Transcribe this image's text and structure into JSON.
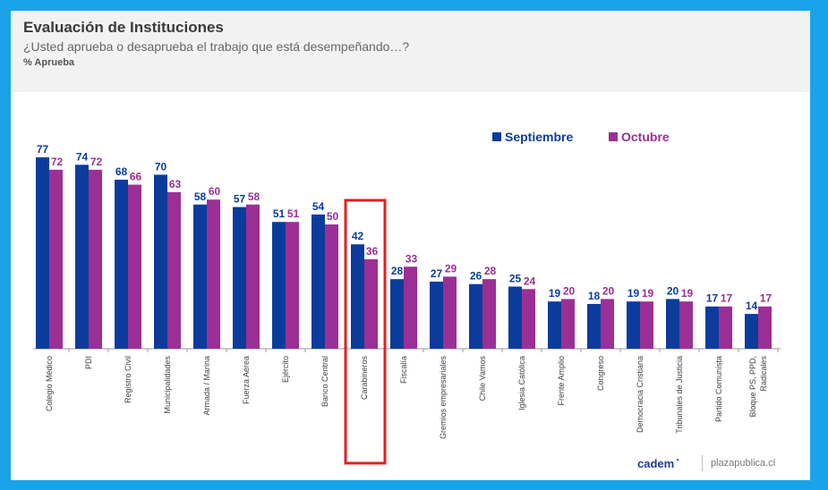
{
  "header": {
    "title": "Evaluación de Instituciones",
    "subtitle": "¿Usted aprueba o desaprueba el trabajo que está desempeñando…?",
    "unit": "% Aprueba"
  },
  "legend": {
    "items": [
      {
        "label": "Septiembre",
        "color": "#0b3c9c"
      },
      {
        "label": "Octubre",
        "color": "#9b2f95"
      }
    ]
  },
  "highlight": {
    "category": "Carabineros",
    "color": "#e02020"
  },
  "footer": {
    "brand": "cadem",
    "site": "plazapublica.cl"
  },
  "chart_data": {
    "type": "bar",
    "title": "Evaluación de Instituciones",
    "subtitle": "¿Usted aprueba o desaprueba el trabajo que está desempeñando…?",
    "ylabel": "% Aprueba",
    "categories": [
      "Colegio Médico",
      "PDI",
      "Registro Civil",
      "Municipalidades",
      "Armada / Marina",
      "Fuerza Aérea",
      "Ejército",
      "Banco Central",
      "Carabineros",
      "Fiscalía",
      "Gremios empresariales",
      "Chile Vamos",
      "Iglesia Católica",
      "Frente Amplio",
      "Congreso",
      "Democracia Cristiana",
      "Tribunales de Justicia",
      "Partido Comunista",
      "Bloque PS, PPD, Radicales"
    ],
    "series": [
      {
        "name": "Septiembre",
        "color": "#0b3c9c",
        "values": [
          77,
          74,
          68,
          70,
          58,
          57,
          51,
          54,
          42,
          28,
          27,
          26,
          25,
          19,
          18,
          19,
          20,
          17,
          14
        ]
      },
      {
        "name": "Octubre",
        "color": "#9b2f95",
        "values": [
          72,
          72,
          66,
          63,
          60,
          58,
          51,
          50,
          36,
          33,
          29,
          28,
          24,
          20,
          20,
          19,
          19,
          17,
          17
        ]
      }
    ],
    "ylim": [
      0,
      80
    ],
    "grid": false,
    "data_labels": true,
    "legend_position": "top-right"
  }
}
